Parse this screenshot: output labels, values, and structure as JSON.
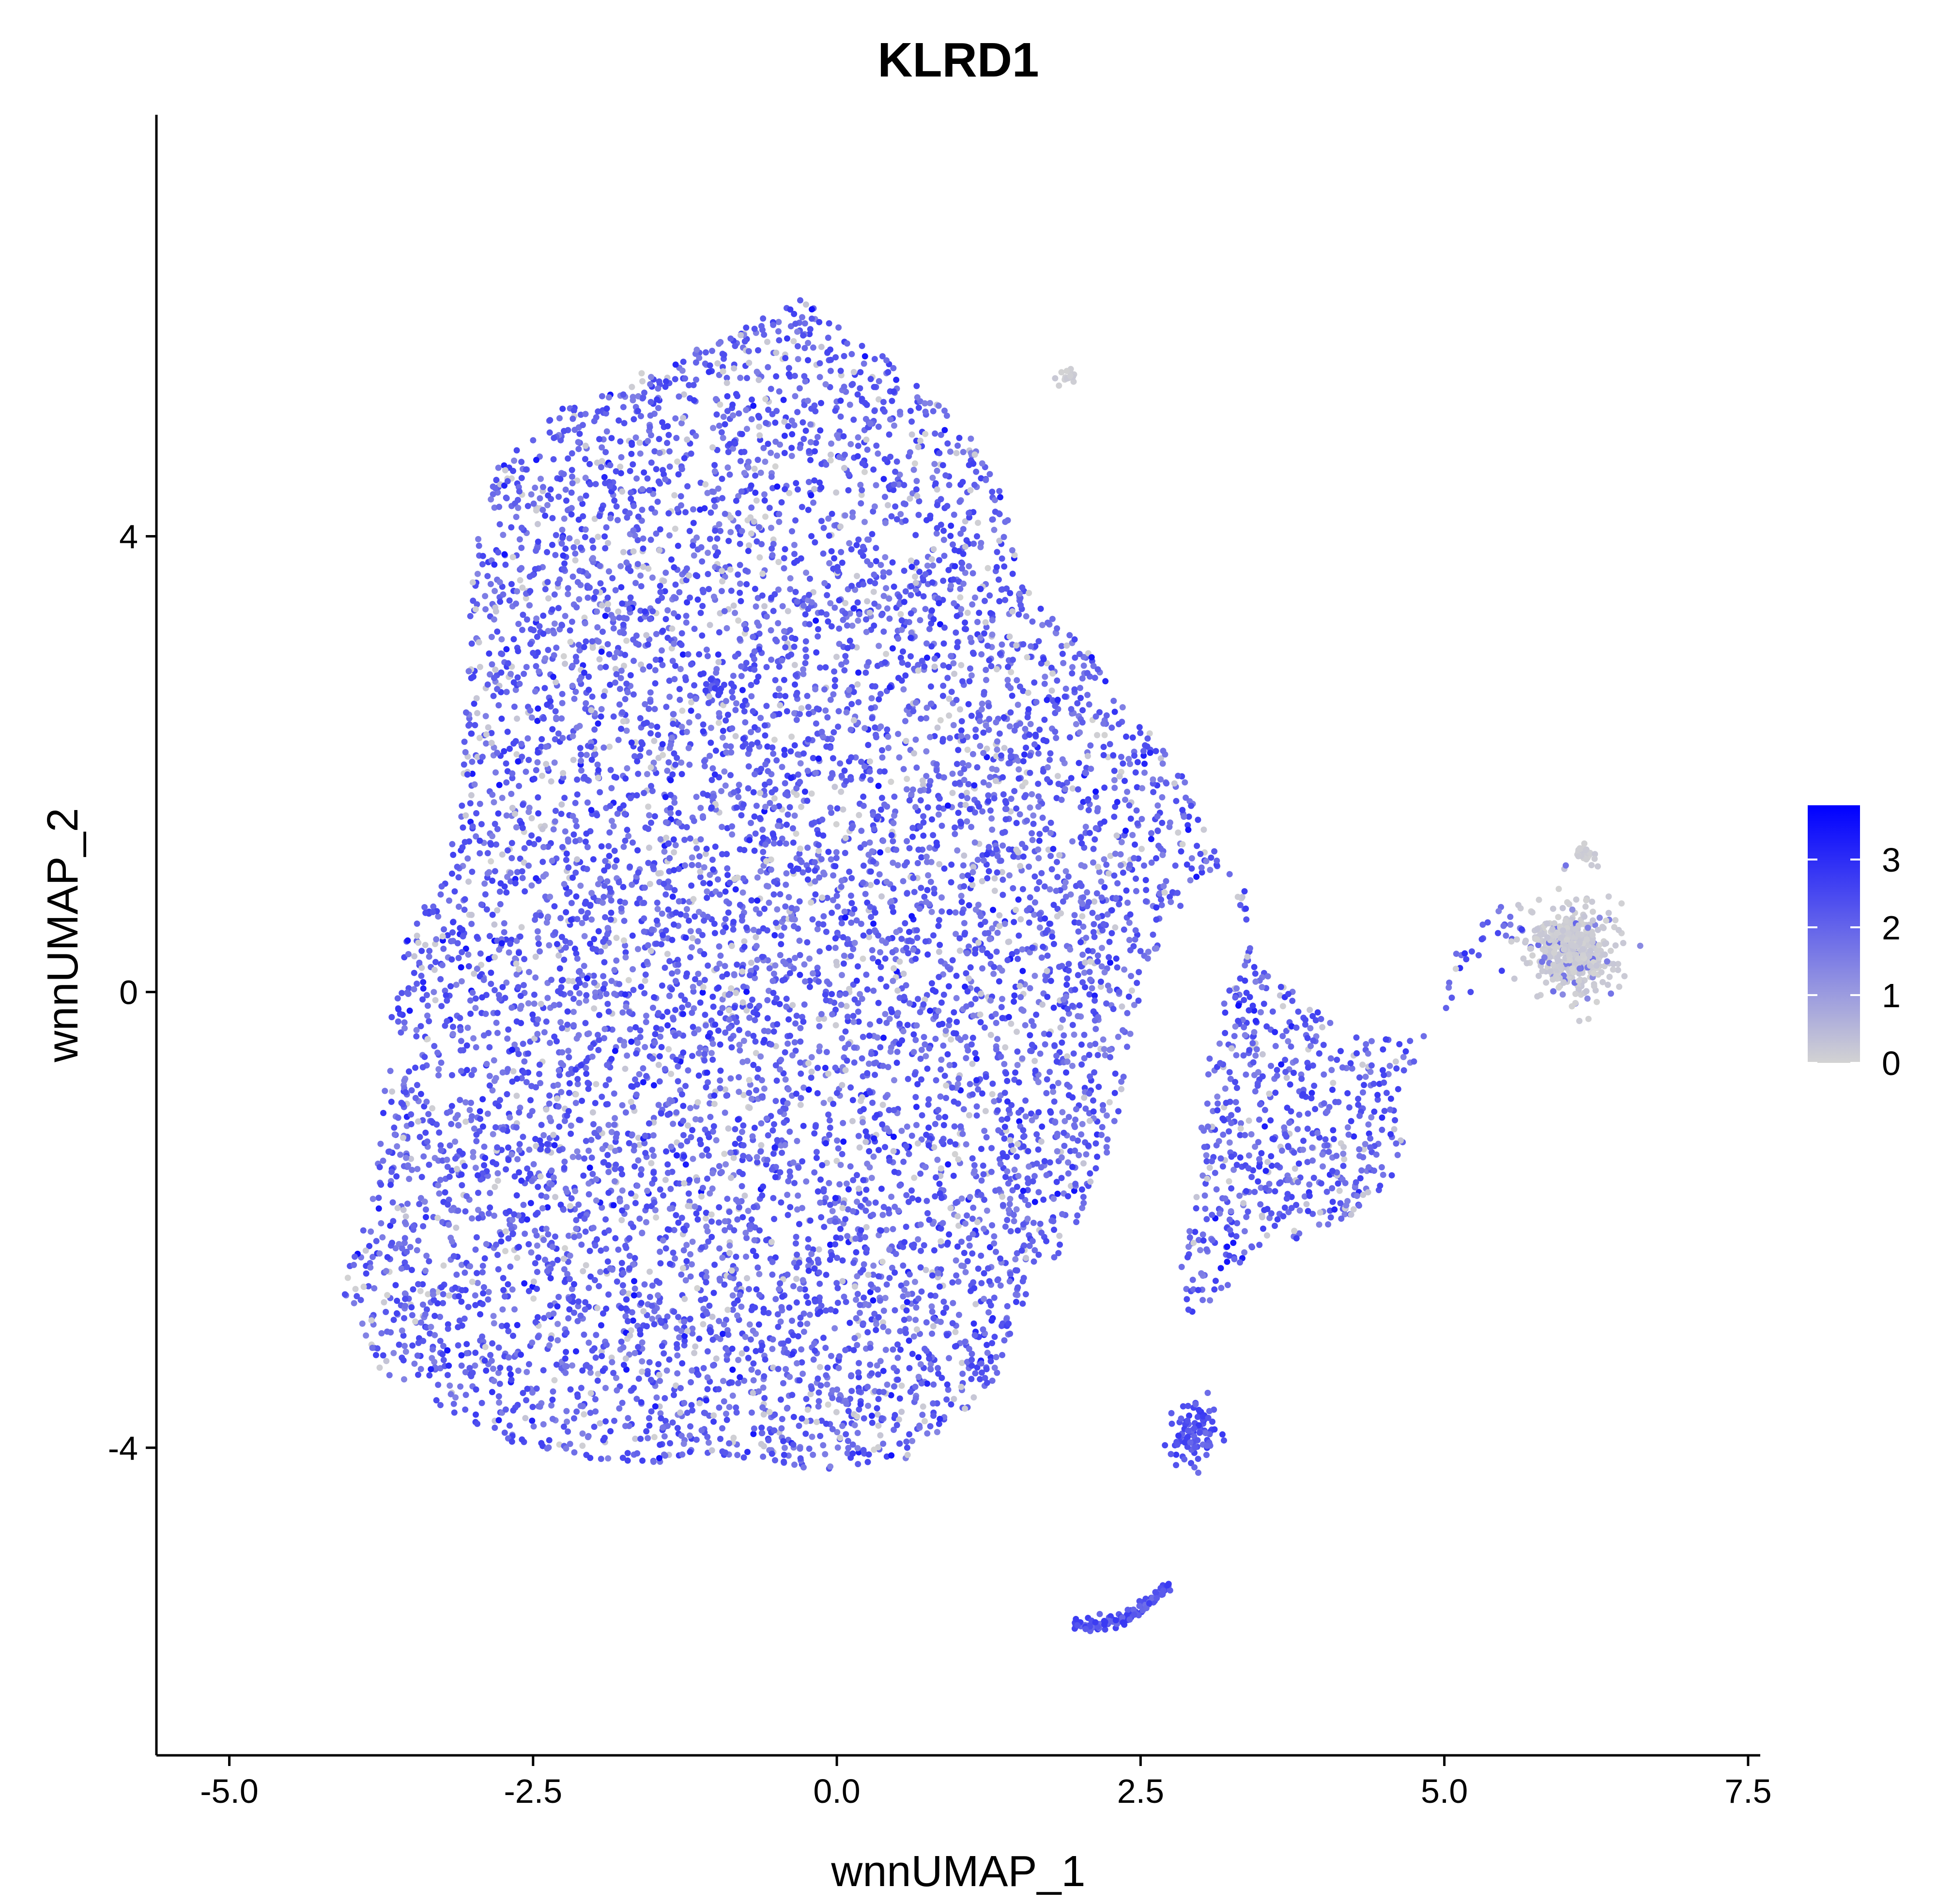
{
  "chart_data": {
    "type": "scatter",
    "title": "KLRD1",
    "xlabel": "wnnUMAP_1",
    "ylabel": "wnnUMAP_2",
    "xlim": [
      -5.6,
      7.6
    ],
    "ylim": [
      -6.7,
      7.7
    ],
    "xticks": [
      -5.0,
      -2.5,
      0.0,
      2.5,
      5.0,
      7.5
    ],
    "xtick_labels": [
      "-5.0",
      "-2.5",
      "0.0",
      "2.5",
      "5.0",
      "7.5"
    ],
    "yticks": [
      -4,
      0,
      4
    ],
    "ytick_labels": [
      "-4",
      "0",
      "4"
    ],
    "grid": false,
    "legend": {
      "placement": "right",
      "type": "colorbar",
      "min": 0,
      "max": 3.8,
      "ticks": [
        0,
        1,
        2,
        3
      ],
      "tick_labels": [
        "0",
        "1",
        "2",
        "3"
      ],
      "low_color": "#d3d3d3",
      "high_color": "#0000ff"
    },
    "clusters": [
      {
        "region": "main body",
        "x_range": [
          -4.0,
          1.5
        ],
        "y_range": [
          -4.3,
          6.2
        ],
        "expression": "high"
      },
      {
        "region": "right arm",
        "x_range": [
          1.5,
          4.8
        ],
        "y_range": [
          -2.5,
          2.5
        ],
        "expression": "medium"
      },
      {
        "region": "right tip",
        "x_range": [
          5.7,
          6.4
        ],
        "y_range": [
          -0.1,
          0.8
        ],
        "expression": "low"
      },
      {
        "region": "small cluster",
        "x_range": [
          2.7,
          3.1
        ],
        "y_range": [
          -4.2,
          -3.6
        ],
        "expression": "high"
      },
      {
        "region": "bottom arc",
        "x_range": [
          1.8,
          2.8
        ],
        "y_range": [
          -5.7,
          -5.2
        ],
        "expression": "high"
      },
      {
        "region": "top outlier",
        "x_range": [
          1.8,
          1.95
        ],
        "y_range": [
          5.3,
          5.5
        ],
        "expression": "low"
      }
    ]
  }
}
